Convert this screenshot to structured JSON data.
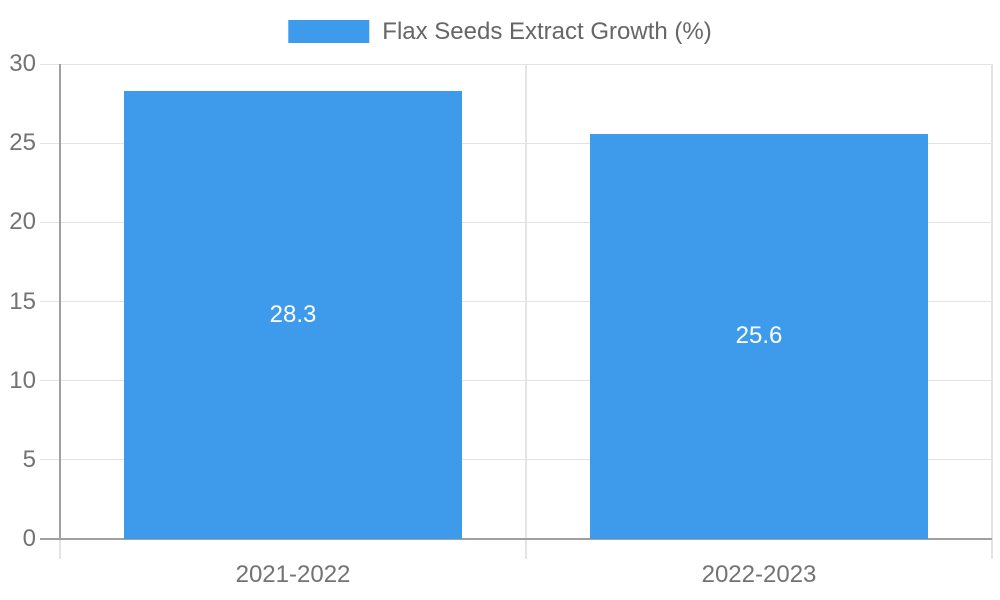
{
  "chart_data": {
    "type": "bar",
    "title": "Flax Seeds Extract Growth (%)",
    "categories": [
      "2021-2022",
      "2022-2023"
    ],
    "values": [
      28.3,
      25.6
    ],
    "value_labels": [
      "28.3",
      "25.6"
    ],
    "series": [
      {
        "name": "Flax Seeds Extract Growth (%)",
        "values": [
          28.3,
          25.6
        ]
      }
    ],
    "xlabel": "",
    "ylabel": "",
    "ylim": [
      0,
      30
    ],
    "yticks": [
      0,
      5,
      10,
      15,
      20,
      25,
      30
    ],
    "ytick_labels": [
      "0",
      "5",
      "10",
      "15",
      "20",
      "25",
      "30"
    ],
    "grid": true,
    "legend_position": "top-center",
    "value_label_position": "center-of-bar",
    "colors": {
      "bar": "#3e9bec",
      "bar_label": "#ffffff",
      "grid_line": "#e3e3e3",
      "axis_line": "#a0a0a0",
      "tick_label": "#737373",
      "legend_text": "#666666",
      "background": "#ffffff"
    }
  }
}
